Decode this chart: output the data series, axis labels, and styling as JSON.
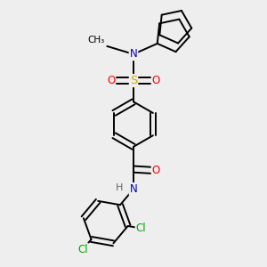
{
  "bg_color": "#eeeeee",
  "atom_colors": {
    "C": "#000000",
    "N": "#0000cc",
    "O": "#ff0000",
    "S": "#ccaa00",
    "Cl": "#00aa00",
    "H": "#666666"
  },
  "bond_color": "#000000",
  "bond_width": 1.4,
  "figsize": [
    3.0,
    3.0
  ],
  "dpi": 100,
  "font_size": 8.5
}
